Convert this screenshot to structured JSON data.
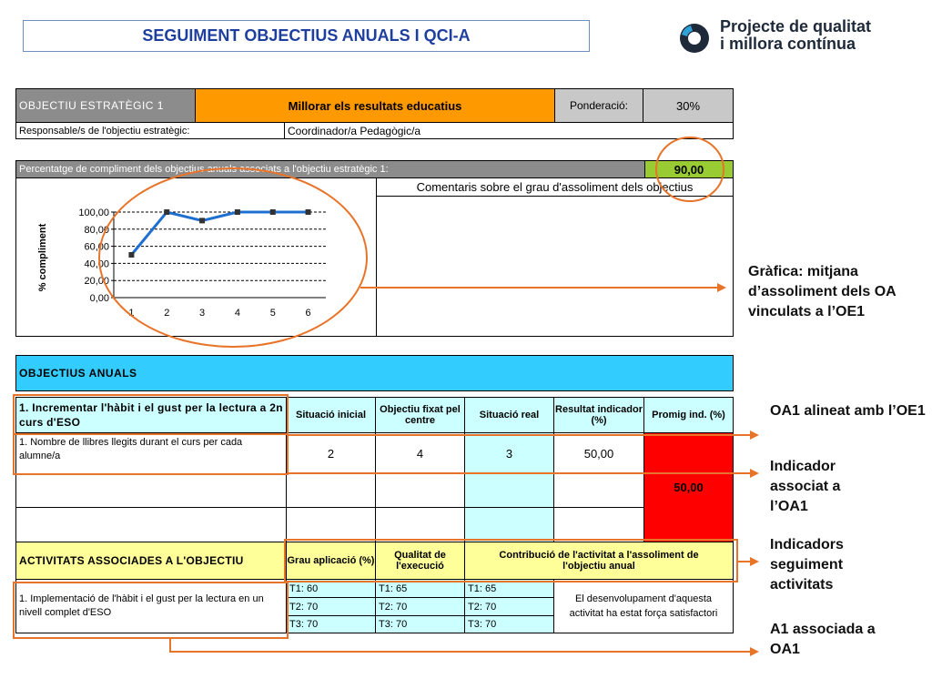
{
  "header": {
    "title": "SEGUIMENT OBJECTIUS ANUALS I QCI-A",
    "logo_line1": "Projecte de qualitat",
    "logo_line2": "i millora contínua",
    "logo_icon": "circle-logo-icon"
  },
  "objective": {
    "label": "OBJECTIU ESTRATÈGIC 1",
    "name": "Millorar els resultats educatius",
    "weight_label": "Ponderació:",
    "weight_value": "30%",
    "responsible_label": "Responsable/s de l'objectiu estratègic:",
    "responsible_value": "Coordinador/a Pedagògic/a"
  },
  "compliance": {
    "label": "Percentatge de compliment dels objectius anuals associats a l'objectiu estratègic 1:",
    "value": "90,00",
    "comments_label": "Comentaris sobre el grau d'assoliment dels objectius"
  },
  "chart_data": {
    "type": "line",
    "x": [
      1,
      2,
      3,
      4,
      5,
      6
    ],
    "values": [
      50,
      100,
      90,
      100,
      100,
      100
    ],
    "ylabel": "%  compliment",
    "ylim": [
      0,
      100
    ],
    "yticks": [
      "0,00",
      "20,00",
      "40,00",
      "60,00",
      "80,00",
      "100,00"
    ],
    "xticks": [
      "1",
      "2",
      "3",
      "4",
      "5",
      "6"
    ],
    "grid": true,
    "line_color": "#1f6fd0",
    "marker_color": "#333333"
  },
  "annual": {
    "section_label": "OBJECTIUS ANUALS",
    "objective_title": "1. Incrementar l'hàbit i el gust per la lectura a 2n curs d'ESO",
    "col_initial": "Situació inicial",
    "col_target": "Objectiu fixat pel centre",
    "col_real": "Situació real",
    "col_result": "Resultat indicador (%)",
    "col_avg": "Promig ind. (%)",
    "indicator": "1. Nombre de llibres llegits durant el curs per cada alumne/a",
    "initial": "2",
    "target": "4",
    "real": "3",
    "result": "50,00",
    "avg": "50,00"
  },
  "activities": {
    "section_label": "ACTIVITATS ASSOCIADES A L'OBJECTIU",
    "col_grade": "Grau aplicació (%)",
    "col_quality": "Qualitat de l'execució",
    "col_contribution": "Contribució de l'activitat a l'assoliment de l'objectiu anual",
    "activity": "1. Implementació de l'hàbit i el gust per la lectura en un nivell complet d'ESO",
    "grade": [
      "T1: 60",
      "T2: 70",
      "T3: 70"
    ],
    "quality": [
      "T1: 65",
      "T2: 70",
      "T3: 70"
    ],
    "third": [
      "T1: 65",
      "T2: 70",
      "T3: 70"
    ],
    "comment": "El desenvolupament d'aquesta activitat ha estat força satisfactori"
  },
  "annotations": {
    "chart_note": "Gràfica: mitjana d’assoliment dels OA vinculats a l’OE1",
    "oa_note": "OA1 alineat amb l’OE1",
    "indicator_note": "Indicador associat a l’OA1",
    "activity_indicators_note": "Indicadors seguiment activitats",
    "activity_note": "A1 associada a OA1"
  },
  "colors": {
    "annotation_orange": "#e8742a",
    "title_blue": "#1f3f9f"
  }
}
